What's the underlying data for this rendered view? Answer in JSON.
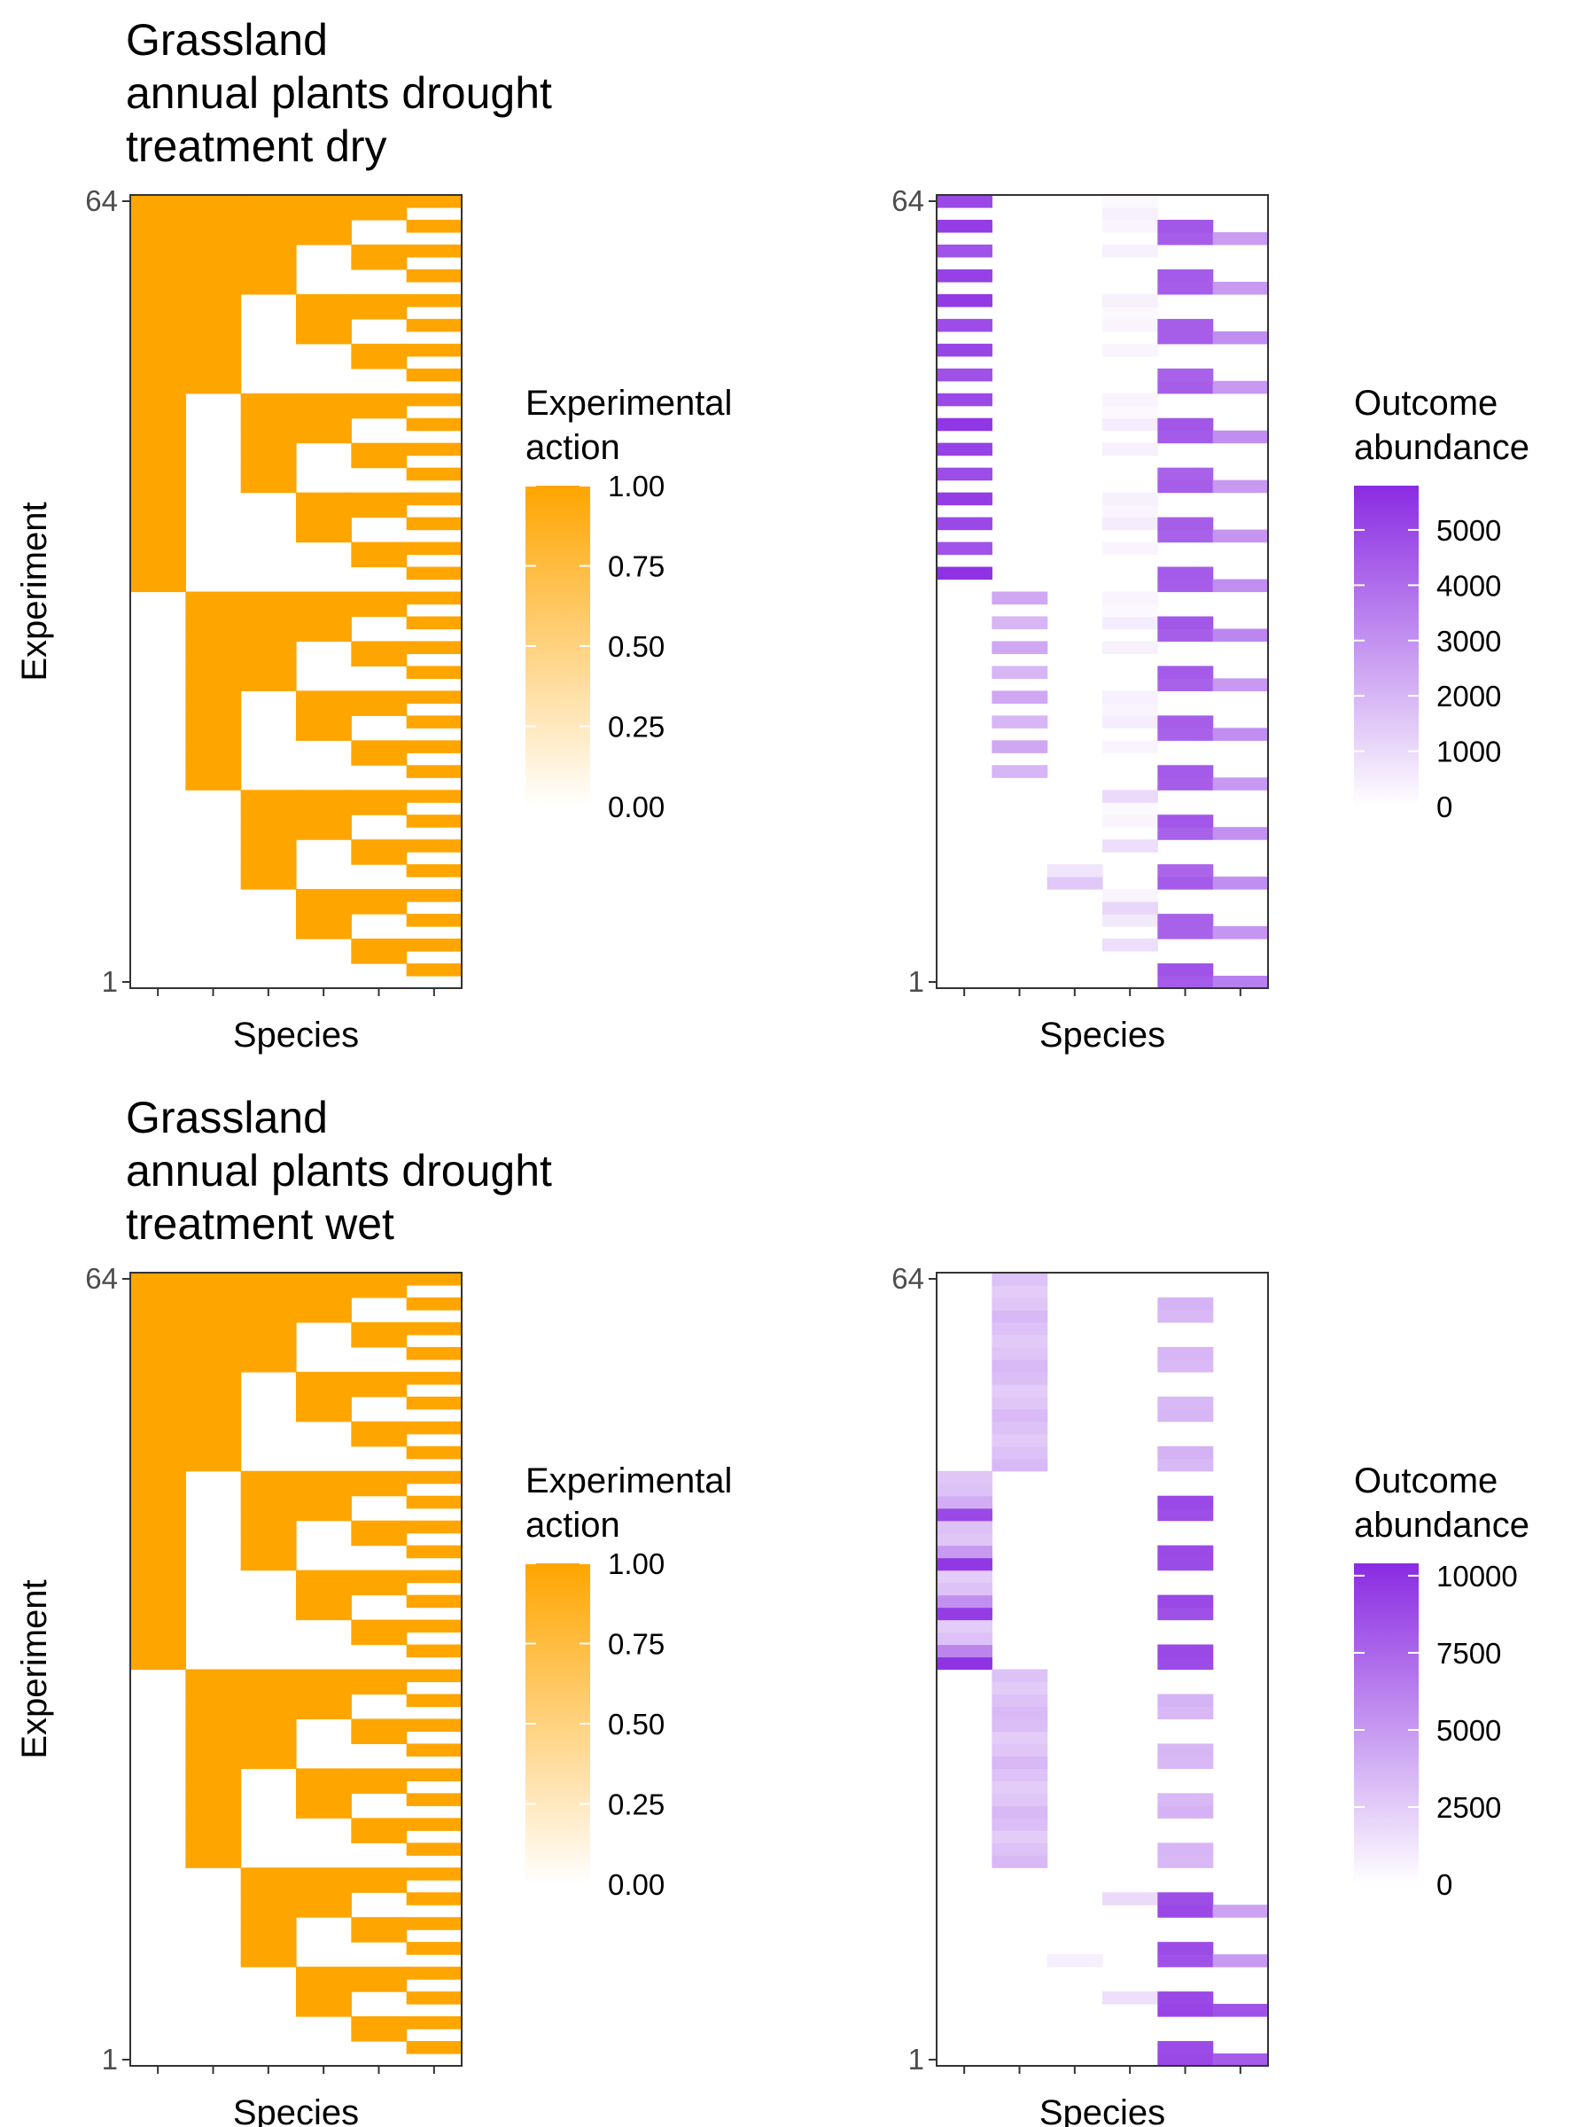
{
  "chart_data": [
    {
      "type": "heatmap",
      "title": "Grassland\nannual plants drought\ntreatment dry",
      "xlabel": "Species",
      "ylabel": "Experiment",
      "y_ticks": [
        "1",
        "64"
      ],
      "ylim": [
        1,
        64
      ],
      "n_species": 6,
      "n_experiments": 64,
      "encoding": "binary presence matrix: experiment e (1..64) has species s (1..6) present when bit (6 - s) of (e - 1) is 1",
      "colorbar": {
        "title": "Experimental\naction",
        "low_color": "#ffffff",
        "high_color": "#ffa500",
        "range": [
          0,
          1
        ],
        "ticks": [
          "1.00",
          "0.75",
          "0.50",
          "0.25",
          "0.00"
        ]
      }
    },
    {
      "type": "heatmap",
      "title": "",
      "xlabel": "Species",
      "ylabel": "",
      "y_ticks": [
        "1",
        "64"
      ],
      "ylim": [
        1,
        64
      ],
      "n_species": 6,
      "n_experiments": 64,
      "colorbar": {
        "title": "Outcome\nabundance",
        "low_color": "#ffffff",
        "high_color": "#8a2be2",
        "range": [
          0,
          5800
        ],
        "ticks": [
          "5000",
          "4000",
          "3000",
          "2000",
          "1000",
          "0"
        ]
      },
      "series": [
        {
          "species": 1,
          "values": [
            {
              "experiments": [
                34,
                36,
                38,
                40,
                42,
                44,
                46,
                48,
                50,
                52,
                54,
                56,
                58,
                60,
                62,
                64
              ],
              "values": [
                5600,
                4700,
                5000,
                5300,
                4900,
                5200,
                5500,
                5000,
                4800,
                5100,
                4900,
                5400,
                5200,
                4700,
                5300,
                5000
              ]
            }
          ]
        },
        {
          "species": 2,
          "values": [
            {
              "experiments": [
                18,
                20,
                22,
                24,
                26,
                28,
                30,
                32
              ],
              "values": [
                2000,
                2400,
                2000,
                2400,
                2000,
                2400,
                2000,
                2400
              ]
            }
          ]
        },
        {
          "species": 3,
          "values": [
            {
              "experiments": [
                9,
                10
              ],
              "values": [
                1500,
                700
              ]
            }
          ]
        },
        {
          "species": 4,
          "values": [
            {
              "experiments": [
                4,
                6,
                7,
                8,
                12,
                14,
                15,
                16,
                20,
                22,
                23,
                24,
                28,
                30,
                31,
                32,
                36,
                38,
                39,
                40,
                44,
                46,
                47,
                48,
                52,
                54,
                55,
                56,
                60,
                62,
                63,
                64
              ],
              "values": [
                900,
                600,
                1100,
                300,
                900,
                300,
                200,
                1000,
                300,
                500,
                300,
                400,
                400,
                500,
                200,
                300,
                300,
                500,
                300,
                400,
                400,
                500,
                200,
                300,
                300,
                300,
                200,
                400,
                400,
                300,
                400,
                200
              ]
            }
          ]
        },
        {
          "species": 5,
          "values": [
            {
              "experiments": [
                1,
                2,
                5,
                6,
                9,
                10,
                13,
                14,
                17,
                18,
                21,
                22,
                25,
                26,
                29,
                30,
                33,
                34,
                37,
                38,
                41,
                42,
                45,
                46,
                49,
                50,
                53,
                54,
                57,
                58,
                61,
                62
              ],
              "values": [
                4500,
                4700,
                4300,
                4300,
                4500,
                4200,
                4300,
                4600,
                4400,
                4500,
                4300,
                4400,
                4300,
                4500,
                4400,
                4600,
                4400,
                4500,
                4300,
                4400,
                4400,
                4300,
                4500,
                4600,
                4400,
                4300,
                4400,
                4400,
                4400,
                4500,
                4400,
                4600
              ]
            }
          ]
        },
        {
          "species": 6,
          "values": [
            {
              "experiments": [
                1,
                5,
                9,
                13,
                17,
                21,
                25,
                29,
                33,
                37,
                41,
                45,
                49,
                53,
                57,
                61
              ],
              "values": [
                3500,
                2900,
                3100,
                3000,
                2800,
                3100,
                2800,
                3300,
                3100,
                2900,
                2800,
                3100,
                2800,
                3100,
                2800,
                2700
              ]
            }
          ]
        }
      ]
    },
    {
      "type": "heatmap",
      "title": "Grassland\nannual plants drought\ntreatment wet",
      "xlabel": "Species",
      "ylabel": "Experiment",
      "y_ticks": [
        "1",
        "64"
      ],
      "ylim": [
        1,
        64
      ],
      "n_species": 6,
      "n_experiments": 64,
      "encoding": "binary presence matrix: experiment e (1..64) has species s (1..6) present when bit (6 - s) of (e - 1) is 1",
      "colorbar": {
        "title": "Experimental\naction",
        "low_color": "#ffffff",
        "high_color": "#ffa500",
        "range": [
          0,
          1
        ],
        "ticks": [
          "1.00",
          "0.75",
          "0.50",
          "0.25",
          "0.00"
        ]
      }
    },
    {
      "type": "heatmap",
      "title": "",
      "xlabel": "Species",
      "ylabel": "",
      "y_ticks": [
        "1",
        "64"
      ],
      "ylim": [
        1,
        64
      ],
      "n_species": 6,
      "n_experiments": 64,
      "colorbar": {
        "title": "Outcome\nabundance",
        "low_color": "#ffffff",
        "high_color": "#8a2be2",
        "range": [
          0,
          10400
        ],
        "ticks": [
          "10000",
          "7500",
          "5000",
          "2500",
          "0"
        ]
      },
      "series": [
        {
          "species": 1,
          "values": [
            {
              "experiments": [
                33,
                34,
                35,
                36,
                37,
                38,
                39,
                40,
                41,
                42,
                43,
                44,
                45,
                46,
                47,
                48
              ],
              "values": [
                10000,
                6000,
                3000,
                2500,
                9500,
                5500,
                3000,
                2500,
                9800,
                5000,
                2800,
                3000,
                9000,
                4000,
                3000,
                2800
              ]
            }
          ]
        },
        {
          "species": 2,
          "values": [
            {
              "experiments": [
                17,
                18,
                19,
                20,
                21,
                22,
                23,
                24,
                25,
                26,
                27,
                28,
                29,
                30,
                31,
                32,
                49,
                50,
                51,
                52,
                53,
                54,
                55,
                56,
                57,
                58,
                59,
                60,
                61,
                62,
                63,
                64
              ],
              "values": [
                3500,
                3000,
                2500,
                3200,
                3500,
                2800,
                2500,
                3000,
                3500,
                2800,
                2500,
                3200,
                3400,
                3000,
                2500,
                3000,
                3500,
                3000,
                2600,
                3000,
                3400,
                2800,
                2500,
                3200,
                3500,
                2900,
                2600,
                3000,
                3500,
                2800,
                2500,
                3000
              ]
            }
          ]
        },
        {
          "species": 3,
          "values": [
            {
              "experiments": [
                9
              ],
              "values": [
                800
              ]
            }
          ]
        },
        {
          "species": 4,
          "values": [
            {
              "experiments": [
                6,
                14
              ],
              "values": [
                1500,
                1800
              ]
            }
          ]
        },
        {
          "species": 5,
          "values": [
            {
              "experiments": [
                1,
                2,
                5,
                6,
                9,
                10,
                13,
                14,
                17,
                18,
                21,
                22,
                25,
                26,
                29,
                30,
                33,
                34,
                37,
                38,
                41,
                42,
                45,
                46,
                49,
                50,
                53,
                54,
                57,
                58,
                61,
                62
              ],
              "values": [
                9000,
                8800,
                9200,
                9000,
                8500,
                8800,
                9000,
                8700,
                3500,
                3600,
                3800,
                3500,
                3500,
                3600,
                3500,
                3700,
                8800,
                9000,
                8600,
                9000,
                8800,
                8900,
                8700,
                9000,
                3500,
                3800,
                3600,
                3500,
                3400,
                3600,
                3500,
                3700
              ]
            }
          ]
        },
        {
          "species": 6,
          "values": [
            {
              "experiments": [
                1,
                5,
                9,
                13
              ],
              "values": [
                8000,
                8500,
                5000,
                4500
              ]
            }
          ]
        }
      ]
    }
  ]
}
